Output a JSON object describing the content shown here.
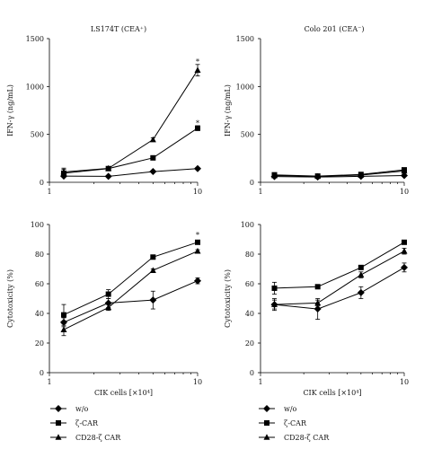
{
  "chart_data": [
    {
      "type": "line",
      "title": "LS174T (CEA⁺)",
      "xlabel": "",
      "ylabel": "IFN-γ (ng/mL)",
      "xscale": "log",
      "xlim": [
        1,
        10
      ],
      "ylim": [
        0,
        1500
      ],
      "xticks": [
        1,
        10
      ],
      "yticks": [
        0,
        500,
        1000,
        1500
      ],
      "x": [
        1.25,
        2.5,
        5,
        10
      ],
      "series": [
        {
          "name": "w/o",
          "marker": "diamond",
          "values": [
            65,
            62,
            112,
            143
          ],
          "errors": [
            8,
            8,
            10,
            12
          ]
        },
        {
          "name": "ζ-CAR",
          "marker": "square",
          "values": [
            95,
            143,
            255,
            565
          ],
          "errors": [
            40,
            10,
            15,
            25
          ]
        },
        {
          "name": "CD28-ζ CAR",
          "marker": "triangle",
          "values": [
            108,
            145,
            445,
            1170
          ],
          "errors": [
            40,
            12,
            20,
            60
          ]
        }
      ],
      "annotations": [
        {
          "text": "*",
          "x": 10,
          "y": 1260
        },
        {
          "text": "*",
          "x": 10,
          "y": 620
        }
      ]
    },
    {
      "type": "line",
      "title": "Colo 201 (CEA⁻)",
      "xlabel": "",
      "ylabel": "IFN-γ (ng/mL)",
      "xscale": "log",
      "xlim": [
        1,
        10
      ],
      "ylim": [
        0,
        1500
      ],
      "xticks": [
        1,
        10
      ],
      "yticks": [
        0,
        500,
        1000,
        1500
      ],
      "x": [
        1.25,
        2.5,
        5,
        10
      ],
      "series": [
        {
          "name": "w/o",
          "marker": "diamond",
          "values": [
            60,
            55,
            62,
            70
          ],
          "errors": [
            5,
            5,
            5,
            5
          ]
        },
        {
          "name": "ζ-CAR",
          "marker": "square",
          "values": [
            78,
            65,
            82,
            130
          ],
          "errors": [
            5,
            5,
            5,
            8
          ]
        },
        {
          "name": "CD28-ζ CAR",
          "marker": "triangle",
          "values": [
            70,
            62,
            75,
            118
          ],
          "errors": [
            5,
            5,
            5,
            8
          ]
        }
      ],
      "annotations": []
    },
    {
      "type": "line",
      "title": "",
      "xlabel": "CIK cells [×10⁴]",
      "ylabel": "Cytotoxicity (%)",
      "xscale": "log",
      "xlim": [
        1,
        10
      ],
      "ylim": [
        0,
        100
      ],
      "xticks": [
        1,
        10
      ],
      "yticks": [
        0,
        20,
        40,
        60,
        80,
        100
      ],
      "x": [
        1.25,
        2.5,
        5,
        10
      ],
      "series": [
        {
          "name": "w/o",
          "marker": "diamond",
          "values": [
            34,
            47,
            49,
            62
          ],
          "errors": [
            3,
            3,
            6,
            2
          ]
        },
        {
          "name": "ζ-CAR",
          "marker": "square",
          "values": [
            39,
            53,
            78,
            88
          ],
          "errors": [
            7,
            3,
            1,
            1
          ]
        },
        {
          "name": "CD28-ζ CAR",
          "marker": "triangle",
          "values": [
            29,
            44,
            69,
            82
          ],
          "errors": [
            4,
            2,
            1,
            1
          ]
        }
      ],
      "annotations": [
        {
          "text": "*",
          "x": 10,
          "y": 93
        }
      ]
    },
    {
      "type": "line",
      "title": "",
      "xlabel": "CIK cells [×10⁴]",
      "ylabel": "Cytotoxicity (%)",
      "xscale": "log",
      "xlim": [
        1,
        10
      ],
      "ylim": [
        0,
        100
      ],
      "xticks": [
        1,
        10
      ],
      "yticks": [
        0,
        20,
        40,
        60,
        80,
        100
      ],
      "x": [
        1.25,
        2.5,
        5,
        10
      ],
      "series": [
        {
          "name": "w/o",
          "marker": "diamond",
          "values": [
            46,
            43,
            54,
            71
          ],
          "errors": [
            4,
            7,
            4,
            3
          ]
        },
        {
          "name": "ζ-CAR",
          "marker": "square",
          "values": [
            57,
            58,
            71,
            88
          ],
          "errors": [
            4,
            1,
            1,
            1
          ]
        },
        {
          "name": "CD28-ζ CAR",
          "marker": "triangle",
          "values": [
            46,
            47,
            66,
            82
          ],
          "errors": [
            3,
            2,
            2,
            2
          ]
        }
      ],
      "annotations": []
    }
  ],
  "legend": {
    "placement": "below each bottom panel",
    "entries": [
      {
        "label": "w/o",
        "marker": "diamond"
      },
      {
        "label": "ζ-CAR",
        "marker": "square"
      },
      {
        "label": "CD28-ζ CAR",
        "marker": "triangle"
      }
    ]
  },
  "colors": {
    "series": "#000000",
    "axes": "#000000",
    "background": "#ffffff"
  }
}
